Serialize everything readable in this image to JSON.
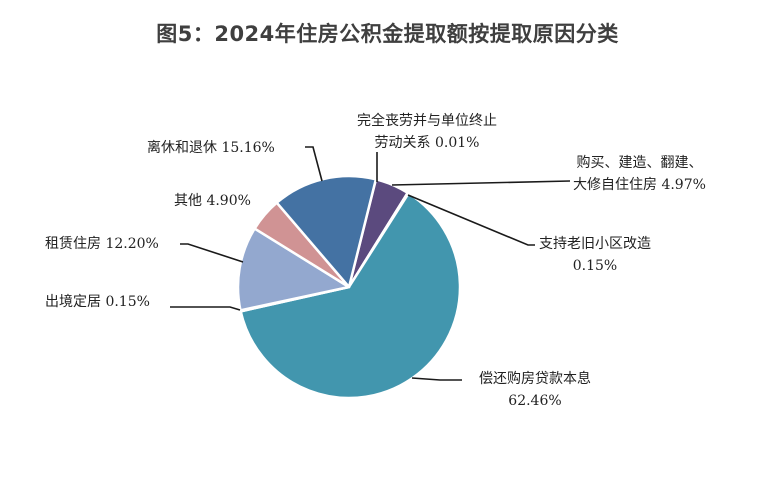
{
  "title": "图5：2024年住房公积金提取额按提取原因分类",
  "chart_data": {
    "type": "pie",
    "title": "图5：2024年住房公积金提取额按提取原因分类",
    "categories": [
      "完全丧劳并与单位终止劳动关系",
      "购买、建造、翻建、大修自住住房",
      "支持老旧小区改造",
      "偿还购房贷款本息",
      "出境定居",
      "租赁住房",
      "其他",
      "离休和退休"
    ],
    "values": [
      0.01,
      4.97,
      0.15,
      62.46,
      0.15,
      12.2,
      4.9,
      15.16
    ],
    "unit": "%",
    "colors": [
      "#4a3f7a",
      "#5b4a7e",
      "#3f93ad",
      "#4296ae",
      "#3f93ad",
      "#93a8cf",
      "#d09394",
      "#4472a3"
    ],
    "start_angle_deg": 14,
    "direction": "clockwise",
    "legend": "none (leader-line labels)"
  },
  "labels": {
    "quit": {
      "line1": "完全丧劳并与单位终止",
      "line2": "劳动关系 0.01%"
    },
    "buy": {
      "line1": "购买、建造、翻建、",
      "line2": "大修自住住房 4.97%"
    },
    "old": {
      "line1": "支持老旧小区改造",
      "line2": "0.15%"
    },
    "loan": {
      "line1": "偿还购房贷款本息",
      "line2": "62.46%"
    },
    "abroad": {
      "text": "出境定居 0.15%"
    },
    "rent": {
      "text": "租赁住房 12.20%"
    },
    "other": {
      "text": "其他 4.90%"
    },
    "retire": {
      "text": "离休和退休 15.16%"
    }
  }
}
